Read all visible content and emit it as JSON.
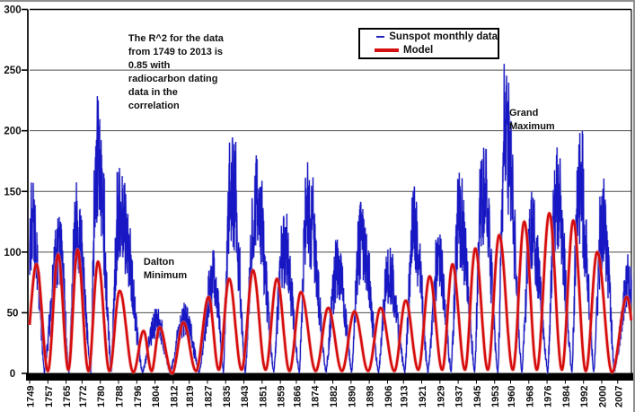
{
  "chart_data": {
    "type": "line",
    "title": "",
    "xlabel": "",
    "ylabel": "",
    "x_range": [
      1749,
      2013
    ],
    "ylim": [
      0,
      300
    ],
    "y_ticks": [
      0,
      50,
      100,
      150,
      200,
      250,
      300
    ],
    "x_tick_years": [
      1749,
      1757,
      1765,
      1772,
      1780,
      1788,
      1796,
      1804,
      1812,
      1819,
      1827,
      1835,
      1843,
      1851,
      1859,
      1866,
      1874,
      1882,
      1890,
      1898,
      1906,
      1913,
      1921,
      1929,
      1937,
      1945,
      1953,
      1960,
      1968,
      1976,
      1984,
      1992,
      2000,
      2007
    ],
    "grid": "horizontal",
    "grid_color": "#4d4d4d",
    "axis_color": "#000000",
    "background_color": "#ffffff",
    "legend_position": "top-center",
    "series": [
      {
        "name": "Sunspot monthly data",
        "color": "#1717c3",
        "halo_color": "#9b9bdd",
        "style": "noisy-monthly",
        "noise_seed": 7,
        "cycles_note": "each cycle: [min_start_year, peak_year, min_end_year, peak_monthly_max]",
        "cycles": [
          [
            1746.0,
            1750.3,
            1755.5,
            160
          ],
          [
            1755.5,
            1762.0,
            1766.2,
            132
          ],
          [
            1766.2,
            1769.6,
            1775.8,
            162
          ],
          [
            1775.8,
            1778.5,
            1784.8,
            242
          ],
          [
            1784.8,
            1788.2,
            1798.5,
            176
          ],
          [
            1798.5,
            1804.5,
            1810.7,
            54
          ],
          [
            1810.7,
            1816.9,
            1823.4,
            58
          ],
          [
            1823.4,
            1829.9,
            1834.0,
            104
          ],
          [
            1834.0,
            1837.3,
            1843.6,
            208
          ],
          [
            1843.6,
            1848.2,
            1856.1,
            182
          ],
          [
            1856.1,
            1860.2,
            1867.3,
            132
          ],
          [
            1867.3,
            1870.7,
            1879.0,
            177
          ],
          [
            1879.0,
            1884.0,
            1890.3,
            112
          ],
          [
            1890.3,
            1894.1,
            1902.1,
            142
          ],
          [
            1902.1,
            1906.3,
            1913.6,
            107
          ],
          [
            1913.6,
            1917.7,
            1923.7,
            155
          ],
          [
            1923.7,
            1928.5,
            1933.9,
            116
          ],
          [
            1933.9,
            1937.5,
            1944.2,
            166
          ],
          [
            1944.2,
            1947.6,
            1954.4,
            203
          ],
          [
            1954.4,
            1957.9,
            1964.9,
            256
          ],
          [
            1964.9,
            1969.0,
            1976.3,
            152
          ],
          [
            1976.3,
            1980.0,
            1986.9,
            189
          ],
          [
            1986.9,
            1990.0,
            1996.5,
            201
          ],
          [
            1996.5,
            2000.6,
            2005.5,
            165
          ],
          [
            2005.5,
            2012.5,
            2019.0,
            100
          ]
        ]
      },
      {
        "name": "Model",
        "color": "#d60d0d",
        "halo_color": "#f29a9a",
        "style": "smooth",
        "points_note": "control points [year, value]; curve is cosine-interpolated between them",
        "points": [
          [
            1746.5,
            2
          ],
          [
            1752.0,
            90
          ],
          [
            1757.0,
            2
          ],
          [
            1761.5,
            98
          ],
          [
            1766.0,
            3
          ],
          [
            1770.0,
            102
          ],
          [
            1774.8,
            2
          ],
          [
            1779.0,
            92
          ],
          [
            1784.0,
            2
          ],
          [
            1788.5,
            68
          ],
          [
            1794.5,
            1
          ],
          [
            1799.0,
            35
          ],
          [
            1802.5,
            2
          ],
          [
            1806.0,
            38
          ],
          [
            1811.5,
            0
          ],
          [
            1816.5,
            42
          ],
          [
            1822.0,
            2
          ],
          [
            1827.5,
            63
          ],
          [
            1832.0,
            3
          ],
          [
            1836.5,
            78
          ],
          [
            1842.0,
            3
          ],
          [
            1847.0,
            85
          ],
          [
            1852.5,
            3
          ],
          [
            1857.5,
            78
          ],
          [
            1863.0,
            2
          ],
          [
            1868.0,
            67
          ],
          [
            1874.5,
            2
          ],
          [
            1880.0,
            54
          ],
          [
            1886.0,
            2
          ],
          [
            1891.5,
            51
          ],
          [
            1897.5,
            2
          ],
          [
            1903.0,
            54
          ],
          [
            1909.0,
            2
          ],
          [
            1914.0,
            60
          ],
          [
            1919.5,
            3
          ],
          [
            1924.5,
            80
          ],
          [
            1930.0,
            3
          ],
          [
            1934.5,
            90
          ],
          [
            1940.0,
            3
          ],
          [
            1944.5,
            103
          ],
          [
            1950.0,
            3
          ],
          [
            1955.0,
            114
          ],
          [
            1961.0,
            3
          ],
          [
            1966.0,
            125
          ],
          [
            1971.5,
            3
          ],
          [
            1977.0,
            132
          ],
          [
            1982.5,
            3
          ],
          [
            1987.5,
            126
          ],
          [
            1993.0,
            2
          ],
          [
            1998.0,
            100
          ],
          [
            2004.5,
            1
          ],
          [
            2011.0,
            63
          ],
          [
            2016.0,
            2
          ]
        ]
      }
    ],
    "annotations": [
      {
        "id": "r2-note",
        "text": "The R^2 for the data\nfrom 1749 to 2013 is\n0.85 with\nradiocarbon dating\ndata in the\ncorrelation",
        "year": 1792.3,
        "value": 281
      },
      {
        "id": "dalton-minimum",
        "text": "Dalton\nMinimum",
        "year": 1799.0,
        "value": 97
      },
      {
        "id": "grand-maximum",
        "text": "Grand\nMaximum",
        "year": 1959.4,
        "value": 220
      }
    ]
  },
  "legend": {
    "sunspot_label": "Sunspot monthly data",
    "model_label": "Model"
  }
}
